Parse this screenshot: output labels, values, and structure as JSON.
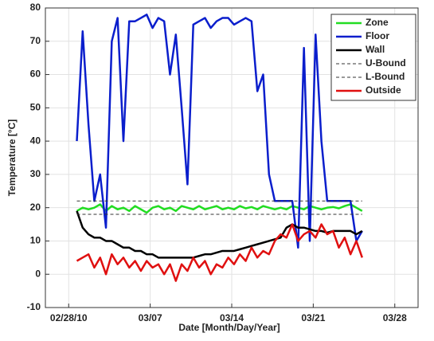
{
  "chart_data": {
    "type": "line",
    "xlabel": "Date [Month/Day/Year]",
    "ylabel": "Temperature [°C]",
    "x": [
      0.7,
      1.2,
      1.7,
      2.2,
      2.7,
      3.2,
      3.7,
      4.2,
      4.7,
      5.2,
      5.7,
      6.2,
      6.7,
      7.2,
      7.7,
      8.2,
      8.7,
      9.2,
      9.7,
      10.2,
      10.7,
      11.2,
      11.7,
      12.2,
      12.7,
      13.2,
      13.7,
      14.2,
      14.7,
      15.2,
      15.7,
      16.2,
      16.7,
      17.2,
      17.7,
      18.2,
      18.7,
      19.2,
      19.7,
      20.2,
      20.7,
      21.2,
      21.7,
      22.2,
      22.7,
      23.2,
      23.7,
      24.2,
      24.7,
      25.2
    ],
    "xlim": [
      -2,
      30
    ],
    "xticks": [
      {
        "value": 0,
        "label": "02/28/10"
      },
      {
        "value": 7,
        "label": "03/07"
      },
      {
        "value": 14,
        "label": "03/14"
      },
      {
        "value": 21,
        "label": "03/21"
      },
      {
        "value": 28,
        "label": "03/28"
      }
    ],
    "ylim": [
      -10,
      80
    ],
    "yticks": [
      -10,
      0,
      10,
      20,
      30,
      40,
      50,
      60,
      70,
      80
    ],
    "grid": true,
    "legend": "upper right",
    "series": [
      {
        "name": "Zone",
        "color": "#22dd22",
        "values": [
          19,
          20,
          19.5,
          20,
          21,
          19,
          20.5,
          19.5,
          20,
          19,
          20.5,
          19.5,
          18.5,
          20,
          20.5,
          19.5,
          20,
          19,
          20.5,
          20,
          19.5,
          20.5,
          19.5,
          20,
          20.5,
          19.5,
          20,
          19.5,
          20.5,
          19.8,
          20.2,
          19.5,
          20.5,
          20,
          19.5,
          20,
          19.5,
          20.5,
          20,
          19.5,
          20.5,
          20,
          19.5,
          20,
          20.2,
          19.8,
          20.5,
          21,
          20,
          19
        ]
      },
      {
        "name": "Floor",
        "color": "#0a1ecc",
        "values": [
          40,
          73,
          45,
          22,
          30,
          14,
          70,
          77,
          40,
          76,
          76,
          77,
          78,
          74,
          77,
          76,
          60,
          72,
          50,
          27,
          75,
          76,
          77,
          74,
          76,
          77,
          77,
          75,
          76,
          77,
          76,
          55,
          60,
          30,
          22,
          22,
          22,
          22,
          8,
          68,
          10,
          72,
          40,
          22,
          22,
          22,
          22,
          22,
          10,
          13
        ]
      },
      {
        "name": "Wall",
        "color": "#000000",
        "values": [
          19,
          14,
          12,
          11,
          11,
          10,
          10,
          9,
          8,
          8,
          7,
          7,
          6,
          6,
          5,
          5,
          5,
          5,
          5,
          5,
          5,
          5.5,
          6,
          6,
          6.5,
          7,
          7,
          7,
          7.5,
          8,
          8.5,
          9,
          9.5,
          10,
          10.5,
          11,
          14,
          15,
          14,
          14,
          13.5,
          13,
          13,
          12.5,
          13,
          13,
          13,
          13,
          12,
          13
        ]
      },
      {
        "name": "U-Bound",
        "color": "#333333",
        "dash": true,
        "x": [
          0.7,
          25.2
        ],
        "values": [
          22,
          22
        ]
      },
      {
        "name": "L-Bound",
        "color": "#333333",
        "dash": true,
        "x": [
          0.7,
          25.2
        ],
        "values": [
          18,
          18
        ]
      },
      {
        "name": "Outside",
        "color": "#e01010",
        "values": [
          4,
          5,
          6,
          2,
          5,
          0,
          6,
          3,
          5,
          2,
          4,
          1,
          4,
          2,
          3,
          0,
          3,
          -2,
          3,
          1,
          5,
          2,
          4,
          0,
          3,
          2,
          5,
          3,
          6,
          4,
          8,
          5,
          7,
          6,
          10,
          12,
          11,
          15,
          10,
          12,
          13,
          11,
          15,
          12,
          13,
          8,
          11,
          6,
          10,
          5
        ]
      }
    ]
  }
}
